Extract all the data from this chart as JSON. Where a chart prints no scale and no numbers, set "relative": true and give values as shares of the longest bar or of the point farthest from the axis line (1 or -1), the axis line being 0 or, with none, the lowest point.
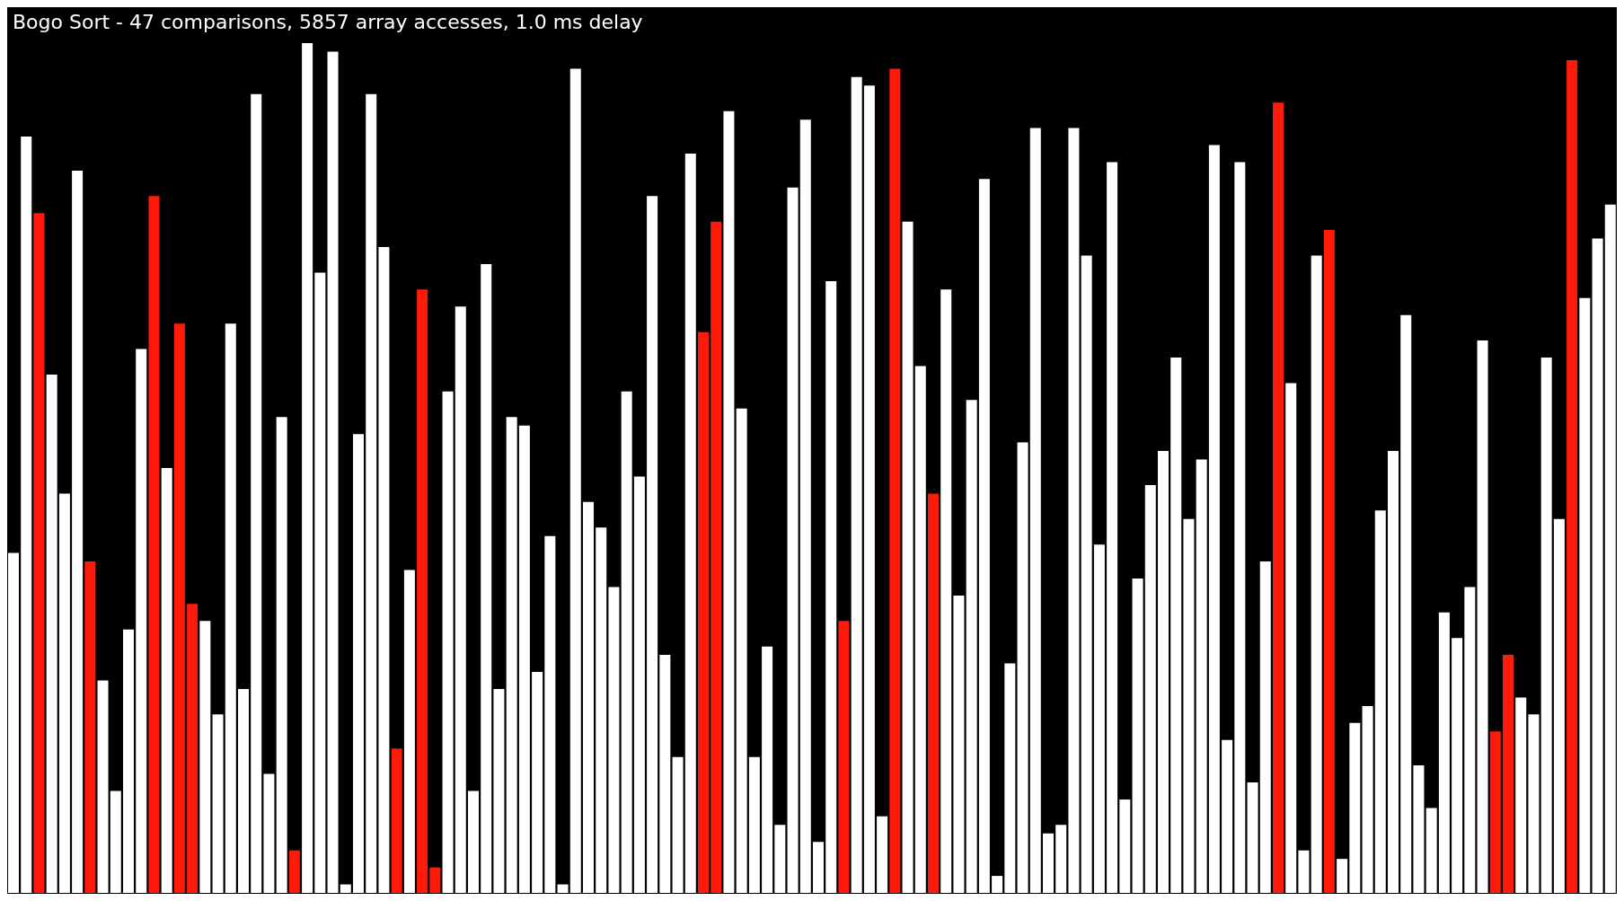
{
  "chart_data": {
    "type": "bar",
    "title": "Bogo Sort - 47 comparisons, 5857 array accesses, 1.0 ms delay",
    "relative": true,
    "categories": [
      null,
      null,
      null,
      null,
      null,
      null,
      null,
      null,
      null,
      null,
      null,
      null,
      null,
      null,
      null,
      null,
      null,
      null,
      null,
      null,
      null,
      null,
      null,
      null,
      null,
      null,
      null,
      null,
      null,
      null,
      null,
      null,
      null,
      null,
      null,
      null,
      null,
      null,
      null,
      null,
      null,
      null,
      null,
      null,
      null,
      null,
      null,
      null,
      null,
      null,
      null,
      null,
      null,
      null,
      null,
      null,
      null,
      null,
      null,
      null,
      null,
      null,
      null,
      null,
      null,
      null,
      null,
      null,
      null,
      null,
      null,
      null,
      null,
      null,
      null,
      null,
      null,
      null,
      null,
      null,
      null,
      null,
      null,
      null,
      null,
      null,
      null,
      null,
      null,
      null,
      null,
      null,
      null,
      null,
      null,
      null,
      null,
      null,
      null,
      null,
      null,
      null,
      null,
      null,
      null,
      null,
      null,
      null,
      null,
      null,
      null,
      null,
      null,
      null,
      null,
      null,
      null,
      null,
      null,
      null,
      null,
      null,
      null,
      null,
      null,
      null
    ],
    "values": [
      0.4,
      0.89,
      0.8,
      0.61,
      0.47,
      0.85,
      0.39,
      0.25,
      0.12,
      0.31,
      0.64,
      0.82,
      0.5,
      0.67,
      0.34,
      0.32,
      0.21,
      0.67,
      0.24,
      0.94,
      0.14,
      0.56,
      0.05,
      1,
      0.73,
      0.99,
      0.01,
      0.54,
      0.94,
      0.76,
      0.17,
      0.38,
      0.71,
      0.03,
      0.59,
      0.69,
      0.12,
      0.74,
      0.24,
      0.56,
      0.55,
      0.26,
      0.42,
      0.01,
      0.97,
      0.46,
      0.43,
      0.36,
      0.59,
      0.49,
      0.82,
      0.28,
      0.16,
      0.87,
      0.66,
      0.79,
      0.92,
      0.57,
      0.16,
      0.29,
      0.08,
      0.83,
      0.91,
      0.06,
      0.72,
      0.32,
      0.96,
      0.95,
      0.09,
      0.97,
      0.79,
      0.62,
      0.47,
      0.71,
      0.35,
      0.58,
      0.84,
      0.02,
      0.27,
      0.53,
      0.9,
      0.07,
      0.08,
      0.9,
      0.75,
      0.41,
      0.86,
      0.11,
      0.37,
      0.48,
      0.52,
      0.63,
      0.44,
      0.51,
      0.88,
      0.18,
      0.86,
      0.13,
      0.39,
      0.93,
      0.6,
      0.05,
      0.75,
      0.78,
      0.04,
      0.2,
      0.22,
      0.45,
      0.52,
      0.68,
      0.15,
      0.1,
      0.33,
      0.3,
      0.36,
      0.65,
      0.19,
      0.28,
      0.23,
      0.21,
      0.63,
      0.44,
      0.98,
      0.7,
      0.77,
      0.81
    ],
    "colors": [
      "#ffffff",
      "#ffffff",
      "#ff1a0a",
      "#ffffff",
      "#ffffff",
      "#ffffff",
      "#ff1a0a",
      "#ffffff",
      "#ffffff",
      "#ffffff",
      "#ffffff",
      "#ff1a0a",
      "#ffffff",
      "#ff1a0a",
      "#ff1a0a",
      "#ffffff",
      "#ffffff",
      "#ffffff",
      "#ffffff",
      "#ffffff",
      "#ffffff",
      "#ffffff",
      "#ff1a0a",
      "#ffffff",
      "#ffffff",
      "#ffffff",
      "#ffffff",
      "#ffffff",
      "#ffffff",
      "#ffffff",
      "#ff1a0a",
      "#ffffff",
      "#ff1a0a",
      "#ff1a0a",
      "#ffffff",
      "#ffffff",
      "#ffffff",
      "#ffffff",
      "#ffffff",
      "#ffffff",
      "#ffffff",
      "#ffffff",
      "#ffffff",
      "#ffffff",
      "#ffffff",
      "#ffffff",
      "#ffffff",
      "#ffffff",
      "#ffffff",
      "#ffffff",
      "#ffffff",
      "#ffffff",
      "#ffffff",
      "#ffffff",
      "#ff1a0a",
      "#ff1a0a",
      "#ffffff",
      "#ffffff",
      "#ffffff",
      "#ffffff",
      "#ffffff",
      "#ffffff",
      "#ffffff",
      "#ffffff",
      "#ffffff",
      "#ff1a0a",
      "#ffffff",
      "#ffffff",
      "#ffffff",
      "#ff1a0a",
      "#ffffff",
      "#ffffff",
      "#ff1a0a",
      "#ffffff",
      "#ffffff",
      "#ffffff",
      "#ffffff",
      "#ffffff",
      "#ffffff",
      "#ffffff",
      "#ffffff",
      "#ffffff",
      "#ffffff",
      "#ffffff",
      "#ffffff",
      "#ffffff",
      "#ffffff",
      "#ffffff",
      "#ffffff",
      "#ffffff",
      "#ffffff",
      "#ffffff",
      "#ffffff",
      "#ffffff",
      "#ffffff",
      "#ffffff",
      "#ffffff",
      "#ffffff",
      "#ffffff",
      "#ff1a0a",
      "#ffffff",
      "#ffffff",
      "#ffffff",
      "#ff1a0a",
      "#ffffff",
      "#ffffff",
      "#ffffff",
      "#ffffff",
      "#ffffff",
      "#ffffff",
      "#ffffff",
      "#ffffff",
      "#ffffff",
      "#ffffff",
      "#ffffff",
      "#ffffff",
      "#ff1a0a",
      "#ff1a0a",
      "#ffffff",
      "#ffffff",
      "#ffffff",
      "#ffffff",
      "#ff1a0a",
      "#ffffff",
      "#ffffff",
      "#ffffff"
    ]
  }
}
